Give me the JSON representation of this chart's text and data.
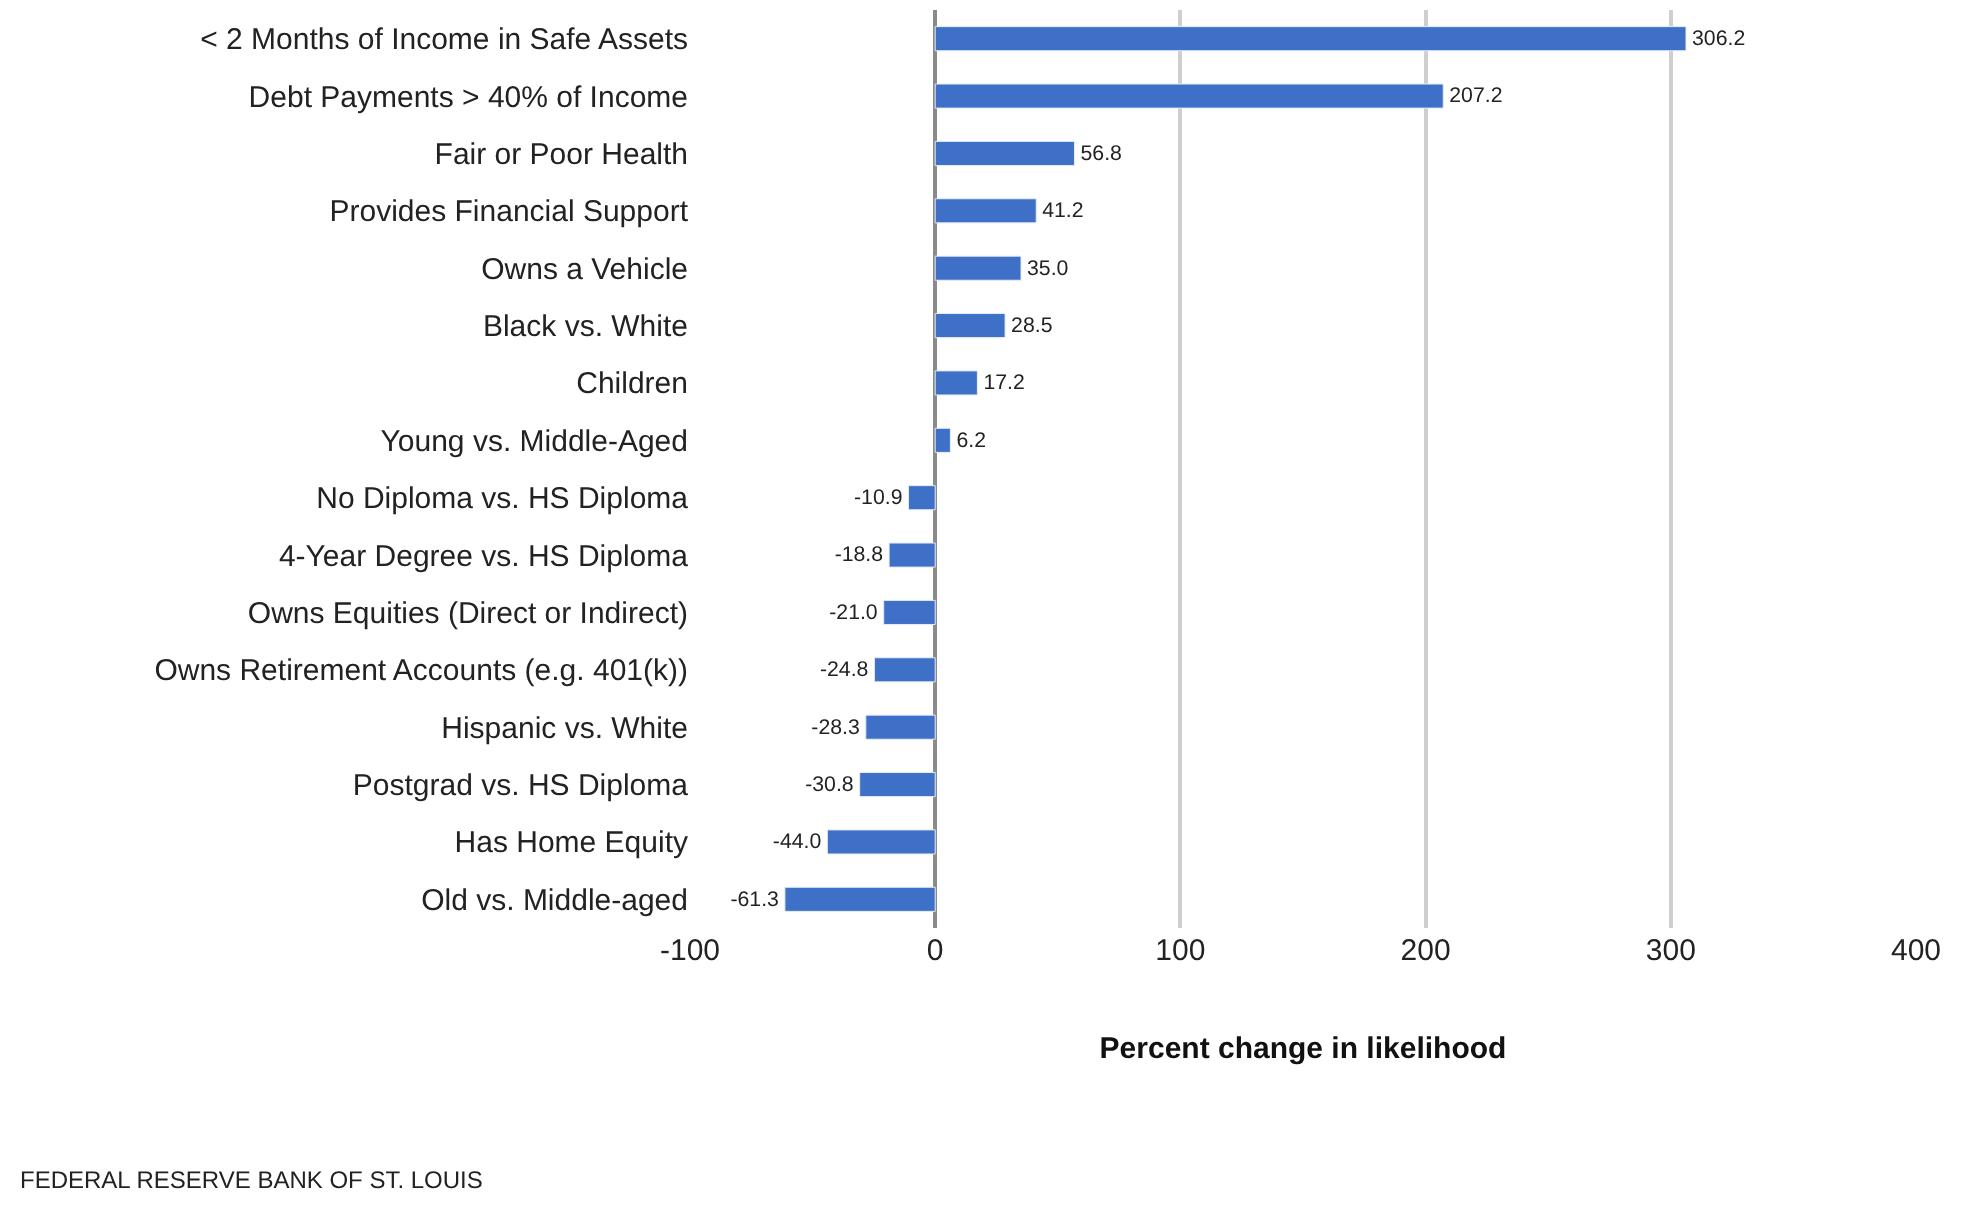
{
  "chart_data": {
    "type": "bar",
    "orientation": "horizontal",
    "categories": [
      "< 2 Months of Income in Safe Assets",
      "Debt Payments > 40% of Income",
      "Fair or Poor Health",
      "Provides Financial Support",
      "Owns a Vehicle",
      "Black vs. White",
      "Children",
      "Young vs. Middle-Aged",
      "No Diploma vs. HS Diploma",
      "4-Year Degree vs. HS Diploma",
      "Owns Equities (Direct or Indirect)",
      "Owns Retirement Accounts (e.g. 401(k))",
      "Hispanic vs. White",
      "Postgrad vs. HS Diploma",
      "Has Home Equity",
      "Old vs. Middle-aged"
    ],
    "values": [
      306.2,
      207.2,
      56.8,
      41.2,
      35.0,
      28.5,
      17.2,
      6.2,
      -10.9,
      -18.8,
      -21.0,
      -24.8,
      -28.3,
      -30.8,
      -44.0,
      -61.3
    ],
    "color": "#3f70c8",
    "value_labels": [
      "306.2",
      "207.2",
      "56.8",
      "41.2",
      "35.0",
      "28.5",
      "17.2",
      "6.2",
      "-10.9",
      "-18.8",
      "-21.0",
      "-24.8",
      "-28.3",
      "-30.8",
      "-44.0",
      "-61.3"
    ],
    "xlim": [
      -100,
      400
    ],
    "xticks": [
      -100,
      0,
      100,
      200,
      300,
      400
    ],
    "xlabel": "Percent change in likelihood",
    "grid": "x",
    "annotations": [
      "FEDERAL RESERVE BANK OF ST. LOUIS"
    ]
  }
}
